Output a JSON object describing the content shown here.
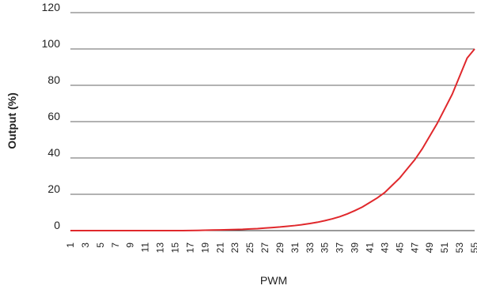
{
  "chart_data": {
    "type": "line",
    "title": "",
    "xlabel": "PWM",
    "ylabel": "Output (%)",
    "ylim": [
      0,
      120
    ],
    "y_ticks": [
      0,
      20,
      40,
      60,
      80,
      100,
      120
    ],
    "grid": true,
    "x": [
      1,
      2,
      3,
      4,
      5,
      6,
      7,
      8,
      9,
      10,
      11,
      12,
      13,
      14,
      15,
      16,
      17,
      18,
      19,
      20,
      21,
      22,
      23,
      24,
      25,
      26,
      27,
      28,
      29,
      30,
      31,
      32,
      33,
      34,
      35,
      36,
      37,
      38,
      39,
      40,
      41,
      42,
      43,
      44,
      45,
      46,
      47,
      48,
      49,
      50,
      51,
      52,
      53,
      54,
      55
    ],
    "x_tick_labels": [
      "1",
      "3",
      "5",
      "7",
      "9",
      "11",
      "13",
      "15",
      "17",
      "19",
      "21",
      "23",
      "25",
      "27",
      "29",
      "31",
      "33",
      "35",
      "37",
      "39",
      "41",
      "43",
      "45",
      "47",
      "49",
      "51",
      "53",
      "55"
    ],
    "series": [
      {
        "color": "#e0282c",
        "values": [
          0,
          0,
          0,
          0,
          0,
          0,
          0,
          0,
          0,
          0,
          0,
          0,
          0,
          0,
          0,
          0,
          0.05,
          0.1,
          0.2,
          0.3,
          0.4,
          0.5,
          0.6,
          0.7,
          0.9,
          1.1,
          1.4,
          1.7,
          2.0,
          2.4,
          2.8,
          3.3,
          3.9,
          4.6,
          5.5,
          6.5,
          7.7,
          9.2,
          11.0,
          13.0,
          15.5,
          18.0,
          21.0,
          25.0,
          29.0,
          34.0,
          39.0,
          45.0,
          52.0,
          59.0,
          67.0,
          75.0,
          85.0,
          95.0,
          100.0
        ]
      }
    ]
  }
}
